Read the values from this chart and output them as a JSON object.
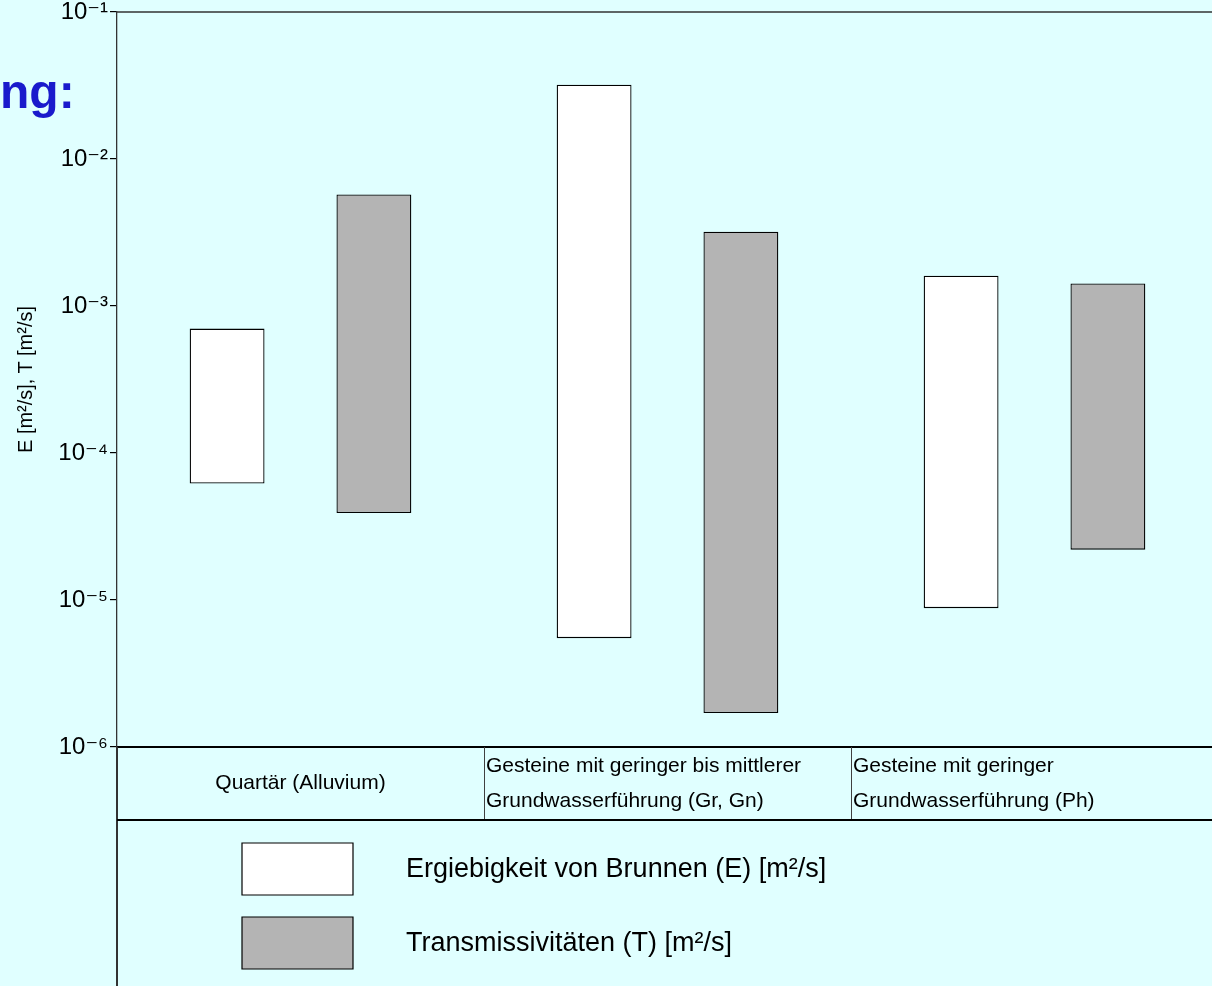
{
  "chart_data": {
    "type": "bar",
    "title": "ng:",
    "ylabel": "E [m²/s], T [m²/s]",
    "categories": [
      "Quartär (Alluvium)",
      "Gesteine mit geringer bis mittlerer Grundwasserführung (Gr, Gn)",
      "Gesteine mit geringer Grundwasserführung (Ph)"
    ],
    "series": [
      {
        "name": "Ergiebigkeit von Brunnen (E) [m²/s]",
        "color": "#ffffff",
        "base": [
          6.2e-05,
          5.5e-06,
          8.8e-06
        ],
        "values": [
          0.00064,
          0.032,
          0.0016
        ]
      },
      {
        "name": "Transmissivitäten (T) [m²/s]",
        "color": "#b4b4b4",
        "base": [
          3.9e-05,
          1.7e-06,
          2.2e-05
        ],
        "values": [
          0.0057,
          0.0032,
          0.0014
        ]
      }
    ],
    "log": true,
    "ylim": [
      1e-06,
      0.1
    ],
    "yticks": [
      {
        "value": 1e-06,
        "label": "10⁻⁶"
      },
      {
        "value": 1e-05,
        "label": "10⁻⁵"
      },
      {
        "value": 0.0001,
        "label": "10⁻⁴"
      },
      {
        "value": 0.001,
        "label": "10⁻³"
      },
      {
        "value": 0.01,
        "label": "10⁻²"
      },
      {
        "value": 0.1,
        "label": "10⁻¹"
      }
    ],
    "legend": "bottom"
  }
}
